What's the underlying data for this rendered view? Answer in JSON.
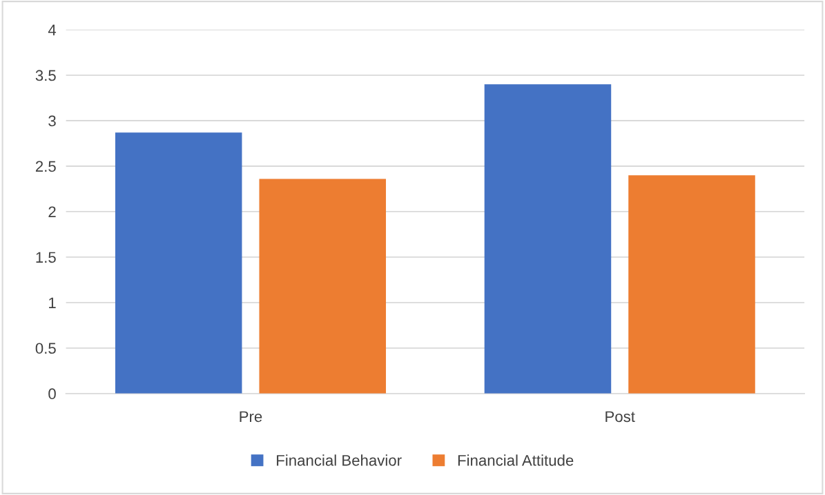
{
  "chart_data": {
    "type": "bar",
    "categories": [
      "Pre",
      "Post"
    ],
    "series": [
      {
        "name": "Financial Behavior",
        "color": "#4472c4",
        "values": [
          2.87,
          3.4
        ]
      },
      {
        "name": "Financial Attitude",
        "color": "#ed7d31",
        "values": [
          2.36,
          2.4
        ]
      }
    ],
    "ylim": [
      0,
      4
    ],
    "yticks": [
      0,
      0.5,
      1,
      1.5,
      2,
      2.5,
      3,
      3.5,
      4
    ],
    "grid": "y",
    "legend": "bottom"
  }
}
